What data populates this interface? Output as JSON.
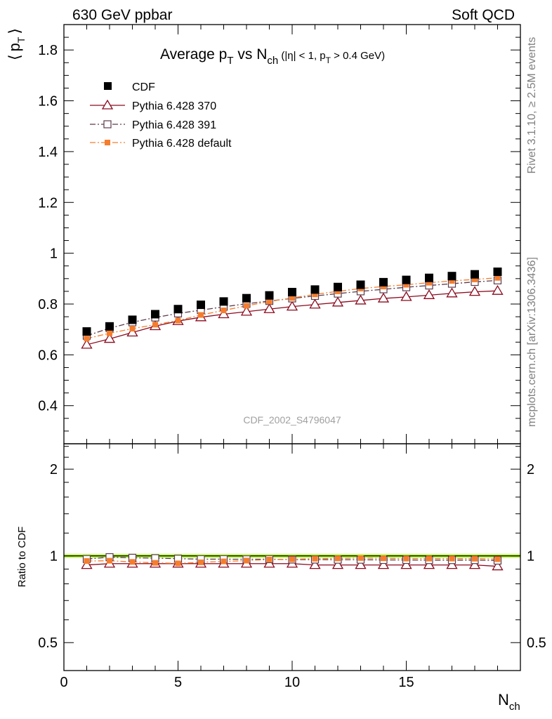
{
  "header": {
    "left_label": "630 GeV ppbar",
    "right_label": "Soft QCD"
  },
  "side_labels": {
    "rivet": "Rivet 3.1.10, ≥ 2.5M events",
    "mcplots": "mcplots.cern.ch [arXiv:1306.3436]"
  },
  "chart_data": [
    {
      "type": "scatter",
      "panel": "main",
      "title": "Average p_T vs N_ch (|η| < 1, p_T > 0.4 GeV)",
      "title_parts": {
        "main": "Average p",
        "sub1": "T",
        "vs": " vs N",
        "sub2": "ch",
        "cut_a": " (|η| < 1, p",
        "sub3": "T",
        "cut_b": " > 0.4 GeV)"
      },
      "ylabel": "⟨ p_T ⟩",
      "ylabel_parts": {
        "open": "⟨",
        "main": "p",
        "sub": "T",
        "close": "⟩"
      },
      "xlabel": "N_ch",
      "xlim": [
        0,
        20
      ],
      "ylim": [
        0.25,
        1.9
      ],
      "yticks": [
        0.4,
        0.6,
        0.8,
        1,
        1.2,
        1.4,
        1.6,
        1.8
      ],
      "ytick_labels": [
        "0.4",
        "0.6",
        "0.8",
        "1",
        "1.2",
        "1.4",
        "1.6",
        "1.8"
      ],
      "watermark": "CDF_2002_S4796047",
      "legend_position": "top-left",
      "x": [
        1,
        2,
        3,
        4,
        5,
        6,
        7,
        8,
        9,
        10,
        11,
        12,
        13,
        14,
        15,
        16,
        17,
        18,
        19
      ],
      "series": [
        {
          "name": "CDF",
          "style": "data",
          "color": "#000000",
          "values": [
            0.692,
            0.712,
            0.738,
            0.76,
            0.78,
            0.797,
            0.81,
            0.823,
            0.834,
            0.847,
            0.857,
            0.867,
            0.876,
            0.886,
            0.895,
            0.903,
            0.91,
            0.917,
            0.927
          ]
        },
        {
          "name": "Pythia 6.428 370",
          "style": "triangle-open",
          "color": "#8b0a1e",
          "values": [
            0.64,
            0.663,
            0.688,
            0.713,
            0.733,
            0.748,
            0.76,
            0.77,
            0.78,
            0.79,
            0.798,
            0.806,
            0.814,
            0.822,
            0.828,
            0.835,
            0.842,
            0.848,
            0.852
          ]
        },
        {
          "name": "Pythia 6.428 391",
          "style": "square-open",
          "color": "#5c3b4b",
          "values": [
            0.675,
            0.705,
            0.728,
            0.747,
            0.763,
            0.776,
            0.789,
            0.801,
            0.812,
            0.822,
            0.832,
            0.841,
            0.85,
            0.858,
            0.866,
            0.873,
            0.88,
            0.887,
            0.893
          ]
        },
        {
          "name": "Pythia 6.428 default",
          "style": "square-filled",
          "color": "#f57d2e",
          "values": [
            0.664,
            0.685,
            0.703,
            0.719,
            0.735,
            0.757,
            0.775,
            0.793,
            0.81,
            0.824,
            0.838,
            0.85,
            0.861,
            0.869,
            0.876,
            0.884,
            0.891,
            0.897,
            0.903
          ]
        }
      ]
    },
    {
      "type": "scatter",
      "panel": "ratio",
      "ylabel": "Ratio to CDF",
      "xlabel": "N_ch",
      "xlabel_parts": {
        "main": "N",
        "sub": "ch"
      },
      "y_scale": "log",
      "ylim": [
        0.4,
        2.45
      ],
      "yticks": [
        0.5,
        1,
        2
      ],
      "ytick_labels": [
        "0.5",
        "1",
        "2"
      ],
      "xticks": [
        0,
        5,
        10,
        15
      ],
      "xtick_labels": [
        "0",
        "5",
        "10",
        "15"
      ],
      "xlim": [
        0,
        20
      ],
      "band_color": "#c6ff62",
      "reference_line": 1,
      "x": [
        1,
        2,
        3,
        4,
        5,
        6,
        7,
        8,
        9,
        10,
        11,
        12,
        13,
        14,
        15,
        16,
        17,
        18,
        19
      ],
      "series": [
        {
          "name": "Pythia 6.428 370",
          "style": "triangle-open",
          "color": "#8b0a1e",
          "values": [
            0.93,
            0.94,
            0.94,
            0.94,
            0.94,
            0.94,
            0.94,
            0.94,
            0.94,
            0.94,
            0.93,
            0.93,
            0.93,
            0.93,
            0.93,
            0.93,
            0.93,
            0.93,
            0.92
          ]
        },
        {
          "name": "Pythia 6.428 391",
          "style": "square-open",
          "color": "#5c3b4b",
          "values": [
            0.975,
            0.99,
            0.985,
            0.982,
            0.978,
            0.974,
            0.974,
            0.973,
            0.974,
            0.971,
            0.971,
            0.97,
            0.97,
            0.968,
            0.968,
            0.967,
            0.967,
            0.967,
            0.963
          ]
        },
        {
          "name": "Pythia 6.428 default",
          "style": "square-filled",
          "color": "#f57d2e",
          "values": [
            0.96,
            0.962,
            0.953,
            0.946,
            0.942,
            0.95,
            0.957,
            0.963,
            0.971,
            0.973,
            0.978,
            0.98,
            0.983,
            0.981,
            0.979,
            0.979,
            0.979,
            0.978,
            0.974
          ]
        }
      ]
    }
  ]
}
